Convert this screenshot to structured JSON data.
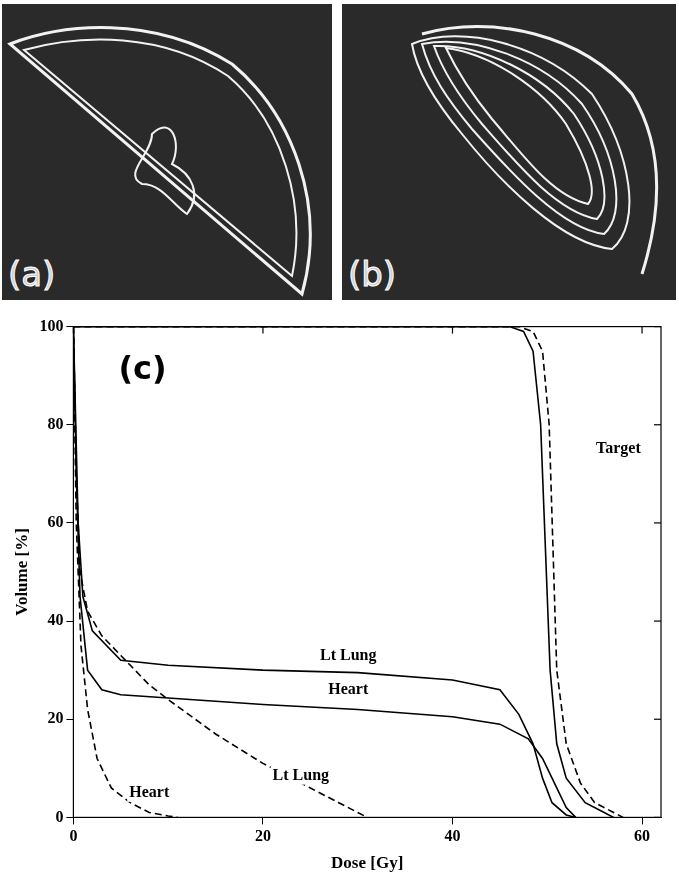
{
  "panels": [
    {
      "label": "(a)"
    },
    {
      "label": "(b)"
    }
  ],
  "chart_data": {
    "type": "line",
    "panel_label": "(c)",
    "x_label": "Dose [Gy]",
    "y_label": "Volume [%]",
    "xlim": [
      0,
      62
    ],
    "xticks": [
      0,
      20,
      40,
      60
    ],
    "ylim": [
      0,
      100
    ],
    "yticks": [
      0,
      20,
      40,
      60,
      80,
      100
    ],
    "grid": false,
    "series": [
      {
        "color": "#000000",
        "line_style": "solid",
        "x": [
          0,
          46,
          47.5,
          48.5,
          49.3,
          49.8,
          50.3,
          51,
          52,
          54,
          56,
          57
        ],
        "values": [
          100,
          100,
          99,
          95,
          80,
          55,
          30,
          15,
          8,
          3,
          1,
          0
        ]
      },
      {
        "color": "#000000",
        "line_style": "dashed",
        "x": [
          0,
          47,
          48.5,
          49.5,
          50.2,
          50.6,
          51,
          52,
          53.5,
          55,
          57,
          58
        ],
        "values": [
          100,
          100,
          99,
          95,
          80,
          55,
          30,
          15,
          7,
          3,
          1,
          0
        ]
      },
      {
        "color": "#000000",
        "line_style": "solid",
        "x": [
          0,
          0.5,
          1,
          2,
          5,
          10,
          20,
          30,
          40,
          45,
          47,
          48.5,
          49.5,
          50.5,
          52,
          53
        ],
        "values": [
          100,
          60,
          45,
          38,
          32,
          31,
          30,
          29.5,
          28,
          26,
          21,
          15,
          8,
          3,
          0.5,
          0
        ]
      },
      {
        "color": "#000000",
        "line_style": "solid",
        "x": [
          0,
          0.3,
          0.7,
          1.5,
          3,
          5,
          20,
          30,
          40,
          45,
          48,
          49.5,
          51,
          52,
          53
        ],
        "values": [
          100,
          70,
          45,
          30,
          26,
          25,
          23,
          22,
          20.5,
          19,
          16,
          12,
          6,
          2,
          0
        ]
      },
      {
        "color": "#000000",
        "line_style": "dashed",
        "x": [
          0,
          0.3,
          0.7,
          1.5,
          3,
          5,
          8,
          10,
          15,
          20,
          25,
          28,
          30,
          31
        ],
        "values": [
          100,
          70,
          50,
          42,
          37,
          33,
          27,
          24,
          17,
          11,
          6,
          3,
          1,
          0
        ]
      },
      {
        "color": "#000000",
        "line_style": "dashed",
        "x": [
          0,
          0.3,
          0.8,
          1.5,
          2.5,
          4,
          6,
          8,
          10,
          11
        ],
        "values": [
          100,
          60,
          35,
          22,
          12,
          6,
          3,
          1,
          0.3,
          0
        ]
      }
    ],
    "annotations": [
      {
        "text": "Target",
        "x": 57.5,
        "y": 75
      },
      {
        "text": "Lt Lung",
        "x": 29,
        "y": 33
      },
      {
        "text": "Heart",
        "x": 29,
        "y": 26
      },
      {
        "text": "Heart",
        "x": 8,
        "y": 5
      },
      {
        "text": "Lt Lung",
        "x": 24,
        "y": 8.5
      }
    ]
  }
}
